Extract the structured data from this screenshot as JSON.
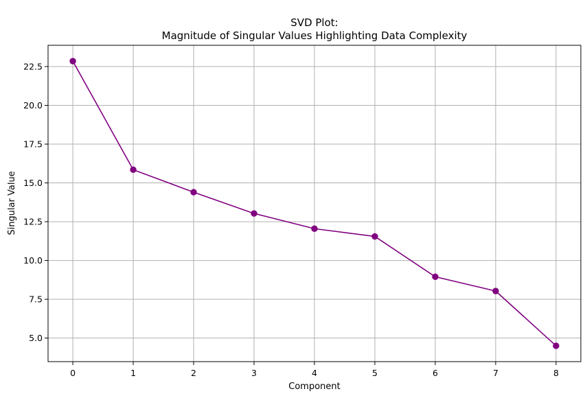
{
  "chart_data": {
    "type": "line",
    "title": "SVD Plot:",
    "subtitle": "Magnitude of Singular Values Highlighting Data Complexity",
    "xlabel": "Component",
    "ylabel": "Singular Value",
    "x": [
      0,
      1,
      2,
      3,
      4,
      5,
      6,
      7,
      8
    ],
    "series": [
      {
        "values": [
          22.85,
          15.85,
          14.4,
          13.03,
          12.05,
          11.55,
          8.95,
          8.03,
          4.5
        ]
      }
    ],
    "xticks": [
      "0",
      "1",
      "2",
      "3",
      "4",
      "5",
      "6",
      "7",
      "8"
    ],
    "yticks": [
      "5.0",
      "7.5",
      "10.0",
      "12.5",
      "15.0",
      "17.5",
      "20.0",
      "22.5"
    ],
    "xlim": [
      -0.41,
      8.41
    ],
    "ylim": [
      3.48,
      23.87
    ],
    "grid": true,
    "marker": "circle",
    "line_color": "#800080",
    "grid_color": "#b0b0b0"
  }
}
